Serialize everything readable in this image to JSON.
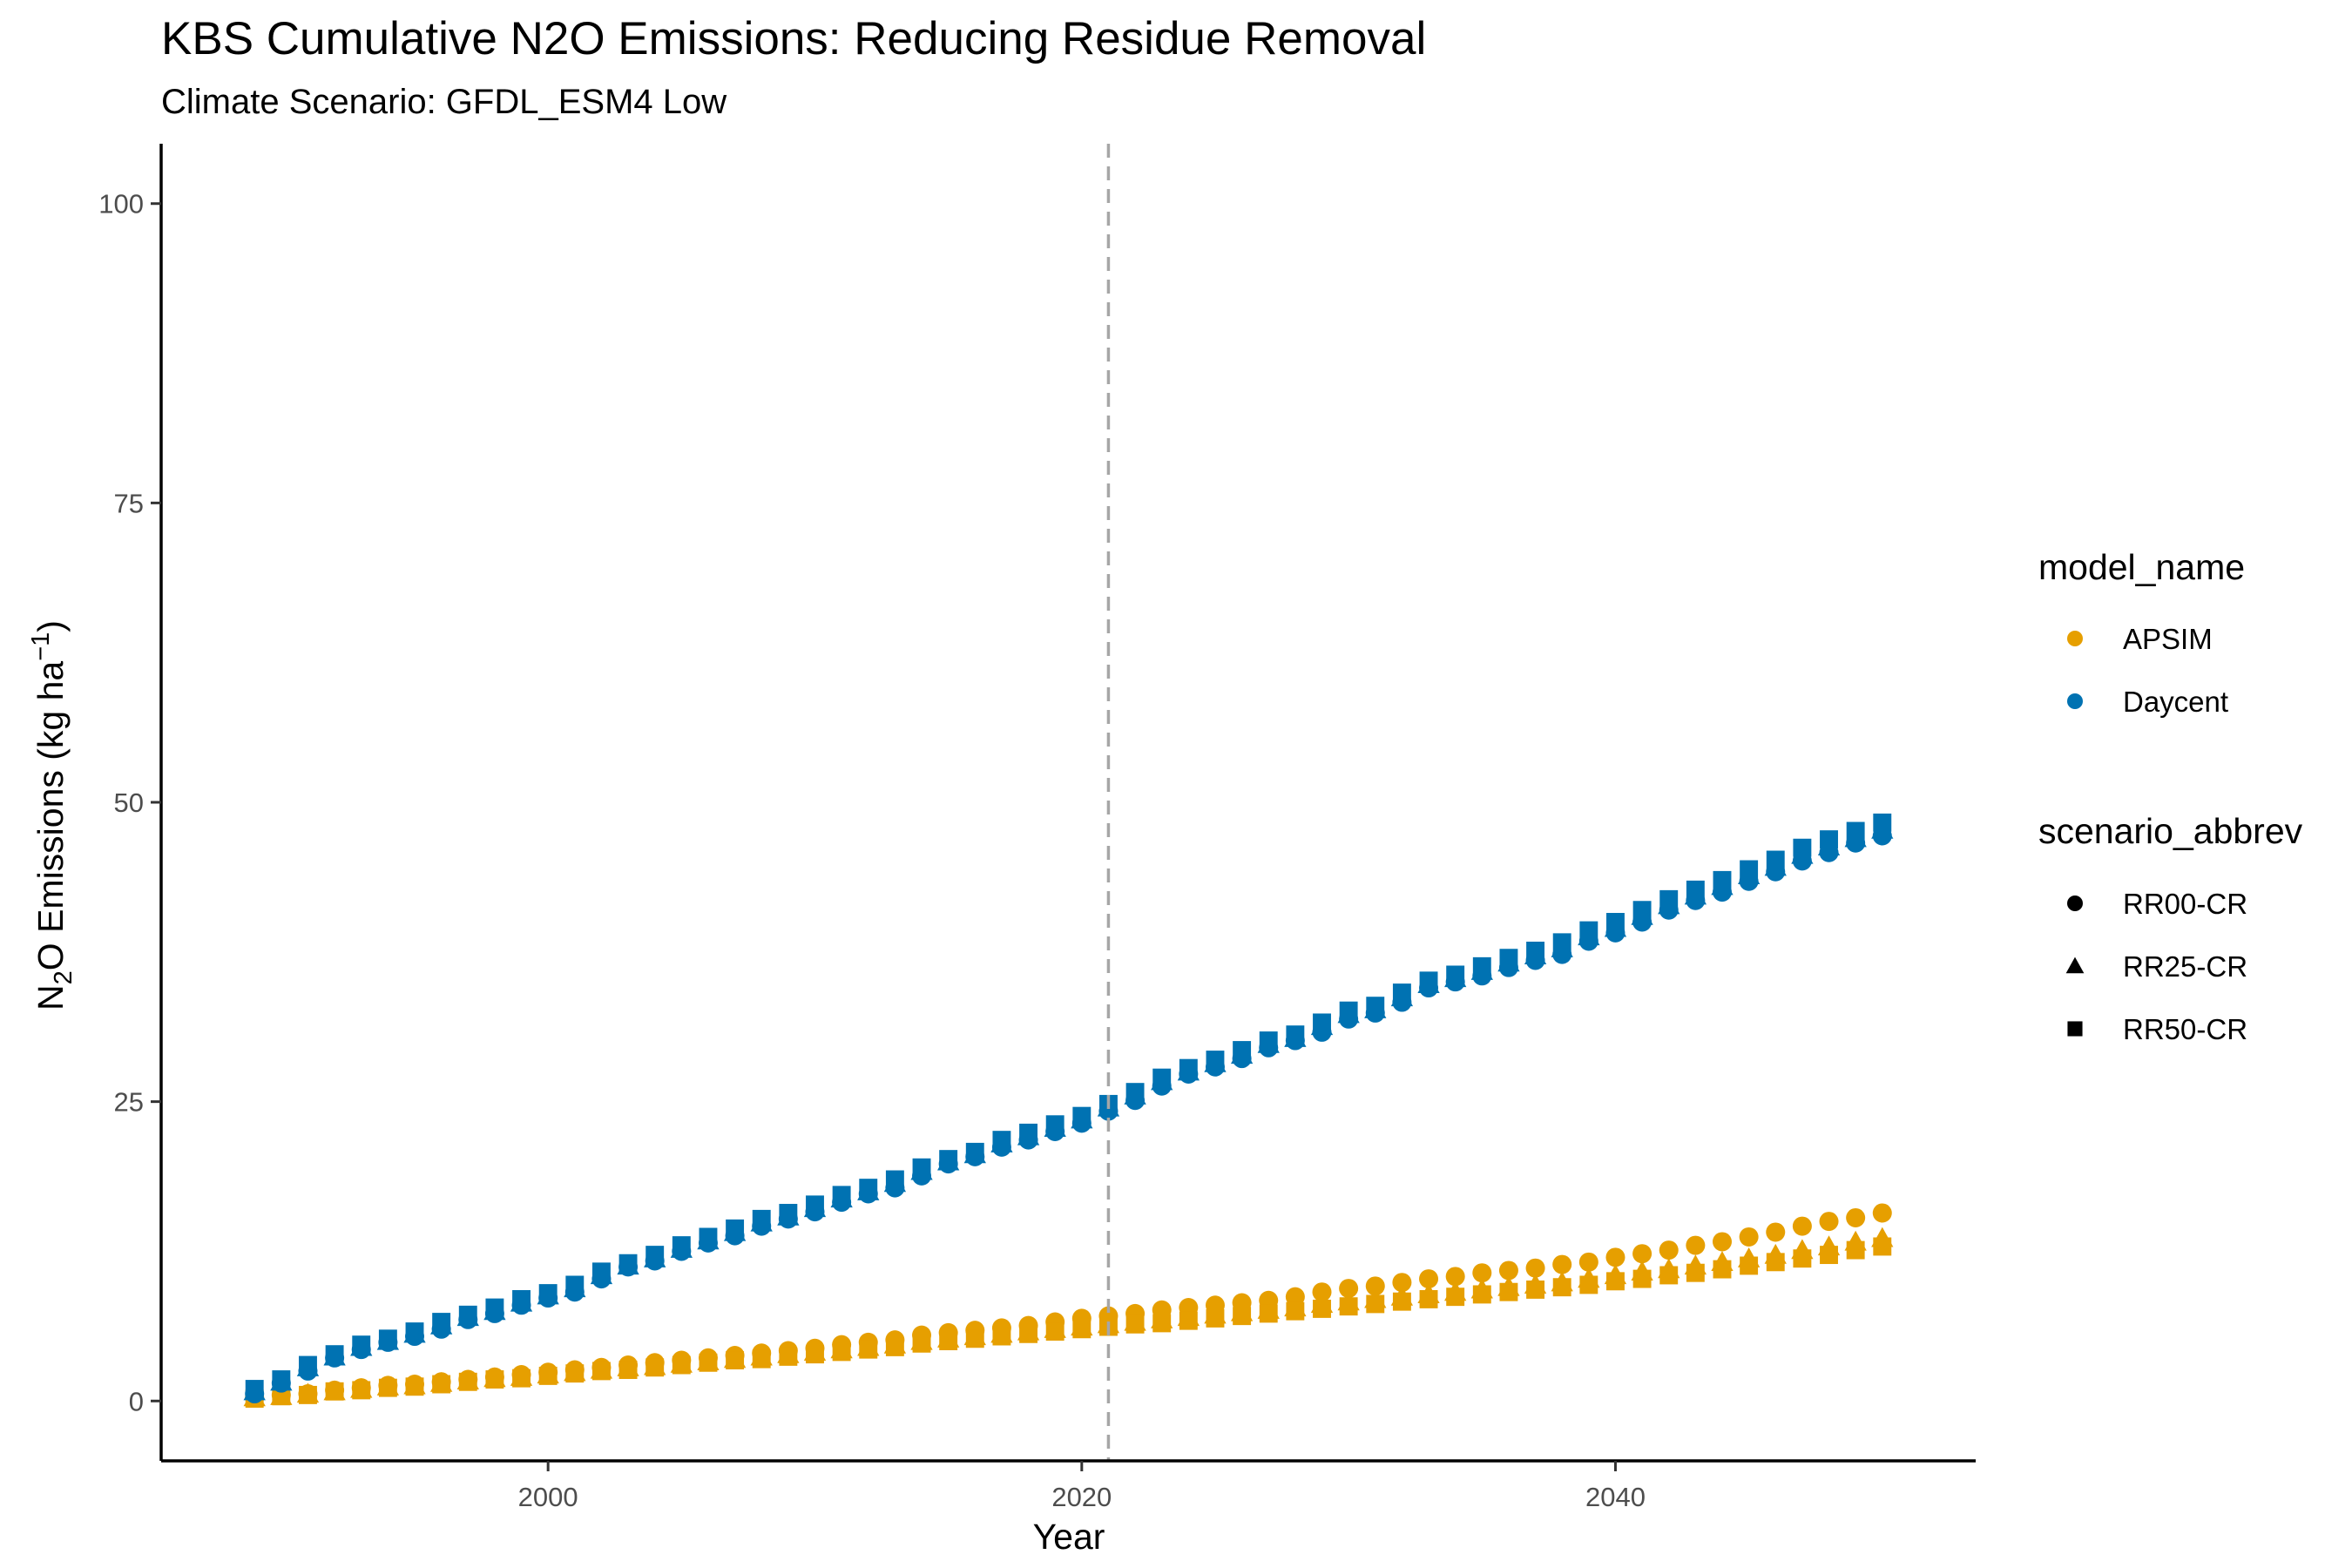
{
  "chart_data": {
    "type": "scatter",
    "title": "KBS  Cumulative N2O Emissions: Reducing Residue Removal",
    "subtitle": "Climate Scenario: GFDL_ESM4 Low",
    "xlabel": "Year",
    "ylabel": "Emissions (kg ha",
    "ylabel_parts": {
      "n": "N",
      "two": "2",
      "o": "O Emissions (kg ha",
      "sup": "−1",
      "close": ")"
    },
    "xlim": [
      1985.5,
      2053.5
    ],
    "ylim": [
      -5,
      105
    ],
    "x_ticks": [
      2000,
      2020,
      2040
    ],
    "x_tick_labels": [
      "2000",
      "2020",
      "2040"
    ],
    "y_ticks": [
      0,
      25,
      50,
      75,
      100
    ],
    "y_tick_labels": [
      "0",
      "25",
      "50",
      "75",
      "100"
    ],
    "vline": {
      "x": 2021,
      "style": "dashed",
      "color": "#a6a6a6"
    },
    "grid": false,
    "legend_position": "right",
    "x_years": [
      1989,
      1990,
      1991,
      1992,
      1993,
      1994,
      1995,
      1996,
      1997,
      1998,
      1999,
      2000,
      2001,
      2002,
      2003,
      2004,
      2005,
      2006,
      2007,
      2008,
      2009,
      2010,
      2011,
      2012,
      2013,
      2014,
      2015,
      2016,
      2017,
      2018,
      2019,
      2020,
      2021,
      2022,
      2023,
      2024,
      2025,
      2026,
      2027,
      2028,
      2029,
      2030,
      2031,
      2032,
      2033,
      2034,
      2035,
      2036,
      2037,
      2038,
      2039,
      2040,
      2041,
      2042,
      2043,
      2044,
      2045,
      2046,
      2047,
      2048,
      2049,
      2050
    ],
    "series": [
      {
        "model": "APSIM",
        "scenario": "RR00-CR",
        "values": [
          0.3,
          0.5,
          0.6,
          0.9,
          1.1,
          1.3,
          1.4,
          1.6,
          1.8,
          2.0,
          2.2,
          2.4,
          2.6,
          2.8,
          3.0,
          3.2,
          3.4,
          3.6,
          3.8,
          4.0,
          4.2,
          4.4,
          4.7,
          4.9,
          5.1,
          5.5,
          5.7,
          5.9,
          6.1,
          6.3,
          6.6,
          6.9,
          7.1,
          7.3,
          7.6,
          7.8,
          8.0,
          8.2,
          8.4,
          8.7,
          9.1,
          9.4,
          9.6,
          9.9,
          10.2,
          10.4,
          10.7,
          10.9,
          11.1,
          11.4,
          11.6,
          12.0,
          12.3,
          12.6,
          13.0,
          13.3,
          13.7,
          14.1,
          14.6,
          15.0,
          15.3,
          15.7
        ]
      },
      {
        "model": "APSIM",
        "scenario": "RR25-CR",
        "values": [
          0.3,
          0.4,
          0.6,
          0.8,
          1.0,
          1.2,
          1.3,
          1.5,
          1.7,
          1.9,
          2.0,
          2.2,
          2.4,
          2.6,
          2.8,
          2.9,
          3.1,
          3.3,
          3.5,
          3.7,
          3.9,
          4.1,
          4.3,
          4.5,
          4.7,
          5.0,
          5.2,
          5.4,
          5.6,
          5.8,
          6.0,
          6.2,
          6.4,
          6.6,
          6.8,
          7.0,
          7.2,
          7.4,
          7.6,
          7.8,
          8.1,
          8.3,
          8.5,
          8.7,
          8.9,
          9.1,
          9.3,
          9.5,
          9.7,
          9.9,
          10.2,
          10.5,
          10.8,
          11.0,
          11.3,
          11.6,
          11.9,
          12.2,
          12.6,
          12.9,
          13.3,
          13.6
        ]
      },
      {
        "model": "APSIM",
        "scenario": "RR50-CR",
        "values": [
          0.2,
          0.4,
          0.5,
          0.8,
          0.9,
          1.1,
          1.2,
          1.4,
          1.6,
          1.8,
          1.9,
          2.1,
          2.3,
          2.5,
          2.6,
          2.8,
          3.0,
          3.2,
          3.4,
          3.5,
          3.7,
          3.9,
          4.1,
          4.3,
          4.5,
          4.8,
          5.0,
          5.2,
          5.4,
          5.6,
          5.8,
          6.0,
          6.2,
          6.4,
          6.5,
          6.7,
          6.9,
          7.1,
          7.3,
          7.5,
          7.7,
          7.9,
          8.1,
          8.3,
          8.5,
          8.7,
          8.9,
          9.1,
          9.3,
          9.5,
          9.7,
          10.0,
          10.2,
          10.5,
          10.7,
          11.0,
          11.3,
          11.6,
          11.9,
          12.2,
          12.6,
          12.9
        ]
      },
      {
        "model": "Daycent",
        "scenario": "RR00-CR",
        "values": [
          0.6,
          1.5,
          2.5,
          3.6,
          4.3,
          4.9,
          5.4,
          6.0,
          6.8,
          7.3,
          8.0,
          8.6,
          9.1,
          10.2,
          11.2,
          11.7,
          12.5,
          13.2,
          13.8,
          14.6,
          15.2,
          15.8,
          16.6,
          17.3,
          17.8,
          18.8,
          19.8,
          20.4,
          21.2,
          21.8,
          22.5,
          23.2,
          24.2,
          25.1,
          26.3,
          27.3,
          27.9,
          28.6,
          29.5,
          30.1,
          30.8,
          31.9,
          32.4,
          33.3,
          34.5,
          35.0,
          35.5,
          36.2,
          36.8,
          37.3,
          38.4,
          39.1,
          40.0,
          41.0,
          41.8,
          42.5,
          43.4,
          44.2,
          45.1,
          45.8,
          46.6,
          47.2
        ]
      },
      {
        "model": "Daycent",
        "scenario": "RR25-CR",
        "values": [
          0.8,
          1.6,
          2.8,
          3.7,
          4.5,
          5.0,
          5.6,
          6.3,
          7.0,
          7.5,
          8.2,
          8.8,
          9.4,
          10.5,
          11.3,
          11.9,
          12.7,
          13.4,
          14.1,
          14.9,
          15.4,
          16.1,
          16.9,
          17.5,
          18.2,
          19.2,
          20.0,
          20.6,
          21.5,
          22.1,
          22.8,
          23.5,
          24.5,
          25.5,
          26.7,
          27.5,
          28.2,
          28.9,
          29.8,
          30.3,
          31.3,
          32.3,
          32.7,
          33.7,
          34.8,
          35.3,
          35.9,
          36.6,
          37.2,
          37.8,
          38.8,
          39.5,
          40.5,
          41.4,
          42.2,
          43.0,
          43.9,
          44.6,
          45.6,
          46.3,
          47.0,
          47.7
        ]
      },
      {
        "model": "Daycent",
        "scenario": "RR50-CR",
        "values": [
          1.0,
          1.8,
          3.0,
          3.9,
          4.7,
          5.2,
          5.8,
          6.6,
          7.2,
          7.8,
          8.5,
          9.0,
          9.7,
          10.8,
          11.5,
          12.2,
          13.0,
          13.7,
          14.4,
          15.2,
          15.7,
          16.4,
          17.2,
          17.8,
          18.5,
          19.5,
          20.2,
          20.8,
          21.8,
          22.4,
          23.1,
          23.8,
          24.8,
          25.8,
          27.0,
          27.8,
          28.5,
          29.3,
          30.1,
          30.6,
          31.6,
          32.6,
          33.0,
          34.1,
          35.1,
          35.6,
          36.3,
          37.0,
          37.6,
          38.3,
          39.3,
          40.0,
          41.0,
          41.9,
          42.7,
          43.5,
          44.4,
          45.2,
          46.2,
          46.9,
          47.6,
          48.3
        ]
      }
    ],
    "colors": {
      "APSIM": "#E69F00",
      "Daycent": "#0072B2",
      "vline": "#a6a6a6"
    },
    "legend": {
      "color_title": "model_name",
      "color_items": [
        "APSIM",
        "Daycent"
      ],
      "shape_title": "scenario_abbrev",
      "shape_items": [
        "RR00-CR",
        "RR25-CR",
        "RR50-CR"
      ],
      "shapes": {
        "RR00-CR": "circle",
        "RR25-CR": "triangle",
        "RR50-CR": "square"
      }
    }
  }
}
